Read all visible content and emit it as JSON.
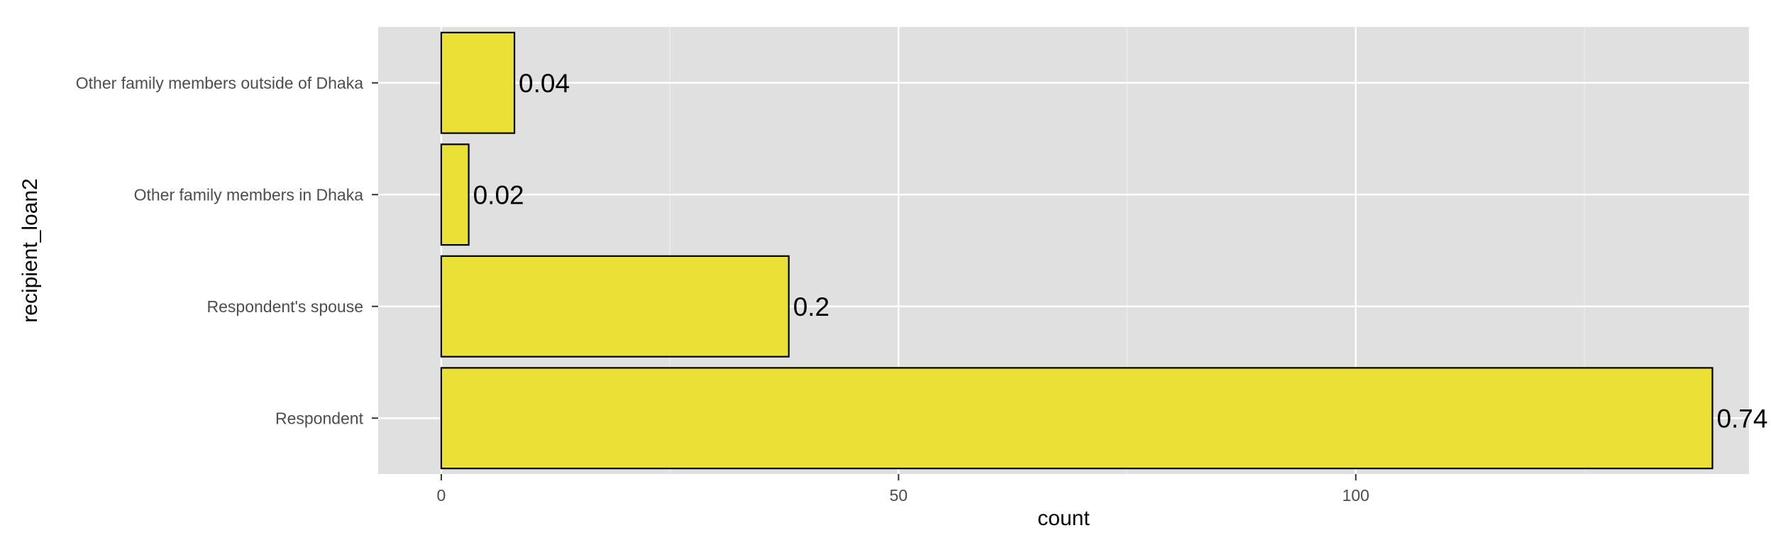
{
  "chart_data": {
    "type": "bar",
    "orientation": "horizontal",
    "categories": [
      "Other family members outside of Dhaka",
      "Other family members in Dhaka",
      "Respondent's spouse",
      "Respondent"
    ],
    "values": [
      8,
      3,
      38,
      139
    ],
    "labels": [
      "0.04",
      "0.02",
      "0.2",
      "0.74"
    ],
    "xlabel": "count",
    "ylabel": "recipient_loan2",
    "xlim": [
      -6.9,
      143
    ],
    "xticks": [
      0,
      50,
      100
    ],
    "xtick_labels": [
      "0",
      "50",
      "100"
    ],
    "grid": true,
    "legend": "none",
    "colors": {
      "bar_fill": "#EBE035",
      "bar_stroke": "#000000",
      "panel_bg": "#E0E0E0",
      "grid": "#FFFFFF"
    }
  }
}
